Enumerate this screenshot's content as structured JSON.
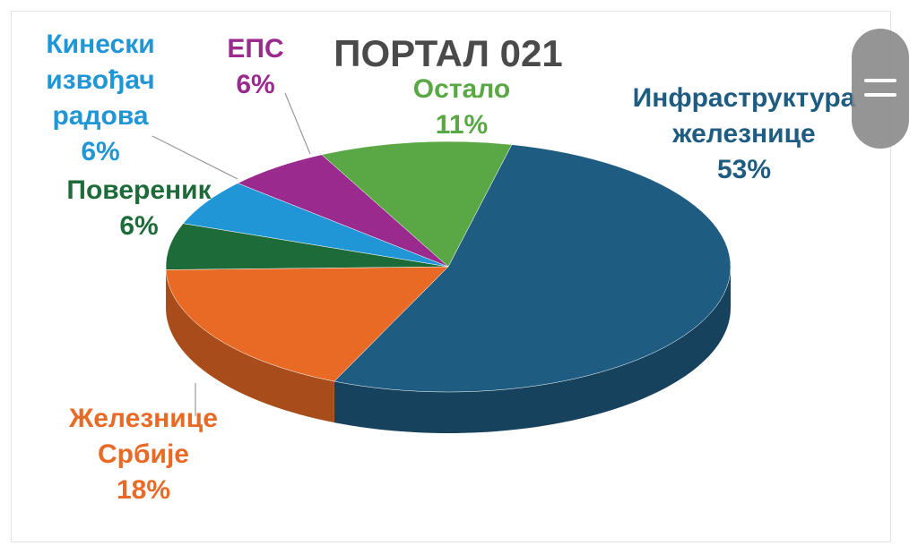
{
  "chart_data": {
    "type": "pie",
    "title": "ПОРТАЛ 021",
    "categories": [
      "Инфраструктура железнице",
      "Железнице Србије",
      "Повереник",
      "Кинески извођач радова",
      "ЕПС",
      "Остало"
    ],
    "values": [
      53,
      18,
      6,
      6,
      6,
      11
    ],
    "value_labels": [
      "53%",
      "18%",
      "6%",
      "6%",
      "6%",
      "11%"
    ],
    "colors": [
      "#1f5c82",
      "#e86a24",
      "#1e6b3a",
      "#2196d6",
      "#9b2a8f",
      "#5aa845"
    ]
  }
}
